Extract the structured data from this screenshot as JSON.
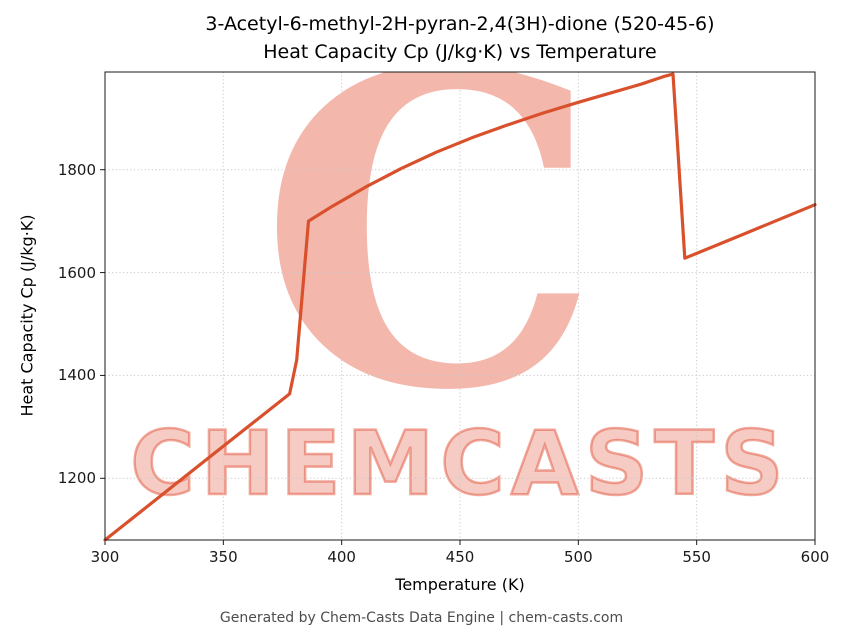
{
  "title": {
    "line1": "3-Acetyl-6-methyl-2H-pyran-2,4(3H)-dione (520-45-6)",
    "line2": "Heat Capacity Cp (J/kg·K) vs Temperature"
  },
  "footer": "Generated by Chem-Casts Data Engine | chem-casts.com",
  "watermark": {
    "letter": "C",
    "text": "CHEMCASTS",
    "color": "#e2543a"
  },
  "chart_data": {
    "type": "line",
    "title": "3-Acetyl-6-methyl-2H-pyran-2,4(3H)-dione (520-45-6) Heat Capacity Cp (J/kg·K) vs Temperature",
    "xlabel": "Temperature (K)",
    "ylabel": "Heat Capacity Cp (J/kg·K)",
    "xlim": [
      300,
      600
    ],
    "ylim": [
      1080,
      1990
    ],
    "xticks": [
      300,
      350,
      400,
      450,
      500,
      550,
      600
    ],
    "yticks": [
      1200,
      1400,
      1600,
      1800
    ],
    "grid": true,
    "legend": "none",
    "line_color": "#d9512c",
    "series": [
      {
        "name": "Heat Capacity Cp",
        "points": [
          [
            300,
            1080
          ],
          [
            340,
            1226
          ],
          [
            378,
            1364
          ],
          [
            381,
            1430
          ],
          [
            386,
            1700
          ],
          [
            395,
            1726
          ],
          [
            410,
            1766
          ],
          [
            425,
            1802
          ],
          [
            440,
            1834
          ],
          [
            455,
            1862
          ],
          [
            470,
            1887
          ],
          [
            485,
            1910
          ],
          [
            500,
            1931
          ],
          [
            515,
            1951
          ],
          [
            527,
            1967
          ],
          [
            536,
            1981
          ],
          [
            540,
            1986
          ],
          [
            545,
            1628
          ],
          [
            570,
            1675
          ],
          [
            600,
            1732
          ]
        ]
      }
    ]
  }
}
